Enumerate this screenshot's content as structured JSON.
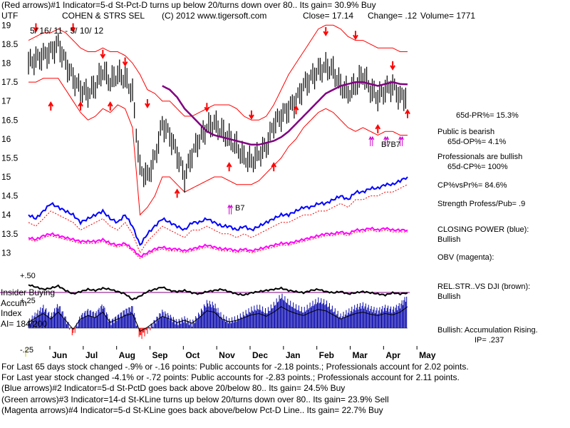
{
  "header": {
    "line1": "(Red arrows)#1 Indicator=5-d St-Pct-D turns up below 20/turns down over 80.. Its gain= 30.9% Buy",
    "symbol": "UTF",
    "name": "COHEN & STRS SEL",
    "copyright": "(C) 2012 www.tigersoft.com",
    "close": "Close=  17.14",
    "change": "Change= .12",
    "volume": "Volume= 1771",
    "date_range": "5/ 16/ 11 - 5/ 10/ 12"
  },
  "side_panel": {
    "pr": "65d-PR%= 15.3%",
    "public": "Public is bearish",
    "op": "65d-OP%= 4.1%",
    "pros": "Professionals are bullish",
    "cp": "65d-CP%= 100%",
    "cpvspr": "CP%vsPr%=  84.6%",
    "strength": "Strength Profess/Pub= .9",
    "closing_power": "CLOSING POWER (blue):",
    "closing_power_val": "Bullish",
    "obv": "OBV (magenta):",
    "relstr": "REL.STR..VS DJI (brown):",
    "relstr_val": "Bullish",
    "accum": "Bullish: Accumulation Rising.",
    "ip": "IP=  .237"
  },
  "lower_panel": {
    "insider": "Insider Buying",
    "accum1": "Accum",
    "accum2": "Index",
    "ai": "AI= 184/200",
    "tick_p50": "+.50",
    "tick_p25": "+.25",
    "tick_m25": "-.25"
  },
  "footer": {
    "line1": "For Last 65 days stock changed -.9% or -.16 points:  Public accounts for -2.18 points.;  Professionals account for  2.02 points.",
    "line2": "For Last year stock changed -4.1% or -.72 points:  Public accounts for -2.83 points.;  Professionals account for  2.11 points.",
    "line3": "(Blue arrows)#2 Indicator=5-d St-PctD goes back above 20/below 80.. Its gain= 24.5% Buy",
    "line4": "(Green arrows)#3 Indicator=14-d St-KLine turns up below 20/turns down over 80.. Its gain= 23.9% Sell",
    "line5": "(Magenta arrows)#4 Indicator=5-d St-KLine goes back above/below Pct-D Line.. Its gain= 22.7% Buy"
  },
  "annotations": {
    "b7": "B7",
    "b7b7": "B7B7"
  },
  "colors": {
    "price": "#000000",
    "band": "#ff0000",
    "ma": "#800080",
    "closing_power": "#0000ff",
    "obv": "#ff00ff",
    "volume": "#0000aa",
    "red_arrow": "#ff0000",
    "magenta_arrow": "#cc00cc"
  },
  "chart_data": {
    "type": "line",
    "title": "COHEN & STRS SEL (UTF)",
    "y_ticks": [
      13,
      13.5,
      14,
      14.5,
      15,
      15.5,
      16,
      16.5,
      17,
      17.5,
      18,
      18.5,
      19
    ],
    "y_tick_labels": [
      "13",
      "13.5",
      "14",
      "14.5",
      "15",
      "15.5",
      "16",
      "16.5",
      "17",
      "17.5",
      "18",
      "18.5",
      "19"
    ],
    "ylim": [
      12.8,
      19.1
    ],
    "months": [
      "Jun",
      "Jul",
      "Aug",
      "Sep",
      "Oct",
      "Nov",
      "Dec",
      "Jan",
      "Feb",
      "Mar",
      "Apr",
      "May"
    ],
    "x_index_range": [
      0,
      51
    ],
    "series": [
      {
        "name": "Price",
        "values": [
          18.0,
          18.1,
          18.2,
          18.3,
          18.5,
          18.0,
          17.6,
          17.3,
          17.2,
          17.4,
          17.8,
          17.5,
          17.7,
          17.6,
          17.2,
          15.2,
          15.0,
          15.5,
          16.4,
          16.1,
          15.6,
          15.0,
          15.6,
          16.0,
          16.3,
          16.4,
          16.2,
          16.0,
          15.8,
          15.5,
          15.4,
          15.6,
          15.8,
          16.4,
          16.6,
          16.8,
          17.0,
          17.4,
          17.6,
          17.8,
          17.9,
          17.8,
          17.4,
          17.2,
          17.4,
          17.7,
          17.3,
          17.1,
          17.3,
          17.4,
          17.1,
          17.14
        ]
      },
      {
        "name": "Upper band",
        "values": [
          18.6,
          18.7,
          18.8,
          18.8,
          18.9,
          18.8,
          18.6,
          18.4,
          18.3,
          18.3,
          18.4,
          18.3,
          18.3,
          18.2,
          18.0,
          17.7,
          17.3,
          17.2,
          17.0,
          17.0,
          16.8,
          16.6,
          16.6,
          16.7,
          16.8,
          16.9,
          16.9,
          16.9,
          16.8,
          16.6,
          16.5,
          16.5,
          16.6,
          16.9,
          17.3,
          17.7,
          18.0,
          18.3,
          18.6,
          18.9,
          19.0,
          19.0,
          18.9,
          18.7,
          18.6,
          18.6,
          18.5,
          18.4,
          18.4,
          18.4,
          18.3,
          18.3
        ]
      },
      {
        "name": "Lower band",
        "values": [
          17.5,
          17.5,
          17.6,
          17.6,
          17.6,
          17.3,
          17.0,
          16.7,
          16.5,
          16.6,
          16.8,
          16.7,
          16.9,
          16.8,
          16.3,
          14.0,
          14.2,
          14.5,
          15.0,
          15.0,
          14.8,
          14.6,
          14.7,
          14.8,
          14.9,
          15.0,
          15.0,
          14.9,
          14.8,
          14.8,
          14.8,
          14.9,
          15.1,
          15.3,
          15.5,
          15.8,
          16.0,
          16.3,
          16.5,
          16.7,
          16.8,
          16.7,
          16.5,
          16.3,
          16.2,
          16.3,
          16.2,
          16.1,
          16.2,
          16.2,
          16.1,
          16.1
        ]
      },
      {
        "name": "Moving average",
        "values": [
          null,
          null,
          null,
          null,
          null,
          null,
          null,
          null,
          null,
          null,
          null,
          null,
          null,
          null,
          null,
          null,
          null,
          null,
          17.4,
          17.3,
          17.1,
          16.8,
          16.6,
          16.4,
          16.2,
          16.1,
          16.05,
          16.0,
          15.95,
          15.9,
          15.85,
          15.85,
          15.9,
          15.95,
          16.05,
          16.2,
          16.4,
          16.6,
          16.8,
          17.0,
          17.2,
          17.3,
          17.4,
          17.45,
          17.5,
          17.5,
          17.45,
          17.4,
          17.45,
          17.5,
          17.45,
          17.44
        ]
      },
      {
        "name": "Closing Power",
        "values": [
          14.0,
          13.9,
          14.1,
          14.3,
          14.2,
          14.1,
          14.0,
          13.8,
          13.9,
          14.0,
          14.1,
          13.9,
          13.8,
          14.0,
          13.7,
          13.2,
          13.5,
          13.7,
          13.9,
          13.8,
          13.7,
          13.6,
          13.8,
          13.8,
          13.9,
          13.8,
          13.7,
          13.7,
          13.6,
          13.7,
          13.6,
          13.7,
          13.8,
          13.9,
          14.0,
          14.0,
          14.1,
          14.2,
          14.2,
          14.3,
          14.3,
          14.4,
          14.5,
          14.4,
          14.6,
          14.6,
          14.7,
          14.7,
          14.8,
          14.8,
          14.9,
          15.0
        ]
      },
      {
        "name": "OBV",
        "values": [
          13.4,
          13.35,
          13.45,
          13.5,
          13.45,
          13.4,
          13.35,
          13.3,
          13.3,
          13.3,
          13.35,
          13.25,
          13.2,
          13.25,
          13.1,
          12.9,
          13.0,
          13.1,
          13.15,
          13.1,
          13.1,
          13.05,
          13.1,
          13.15,
          13.2,
          13.15,
          13.1,
          13.1,
          13.05,
          13.1,
          13.05,
          13.1,
          13.15,
          13.2,
          13.25,
          13.25,
          13.3,
          13.35,
          13.4,
          13.45,
          13.5,
          13.5,
          13.55,
          13.5,
          13.6,
          13.6,
          13.65,
          13.6,
          13.65,
          13.6,
          13.6,
          13.6
        ]
      }
    ],
    "red_arrows": [
      {
        "i": 1,
        "dir": "down",
        "v": 18.9
      },
      {
        "i": 3,
        "dir": "up",
        "v": 16.9
      },
      {
        "i": 6,
        "dir": "down",
        "v": 18.9
      },
      {
        "i": 7,
        "dir": "up",
        "v": 16.9
      },
      {
        "i": 10,
        "dir": "down",
        "v": 18.2
      },
      {
        "i": 11,
        "dir": "up",
        "v": 16.9
      },
      {
        "i": 13,
        "dir": "down",
        "v": 18.0
      },
      {
        "i": 16,
        "dir": "down",
        "v": 16.9
      },
      {
        "i": 20,
        "dir": "up",
        "v": 14.6
      },
      {
        "i": 24,
        "dir": "down",
        "v": 16.8
      },
      {
        "i": 27,
        "dir": "up",
        "v": 15.3
      },
      {
        "i": 30,
        "dir": "down",
        "v": 16.6
      },
      {
        "i": 33,
        "dir": "up",
        "v": 15.3
      },
      {
        "i": 36,
        "dir": "up",
        "v": 16.8
      },
      {
        "i": 40,
        "dir": "down",
        "v": 18.8
      },
      {
        "i": 44,
        "dir": "down",
        "v": 18.7
      },
      {
        "i": 47,
        "dir": "up",
        "v": 16.3
      },
      {
        "i": 49,
        "dir": "down",
        "v": 17.9
      },
      {
        "i": 51,
        "dir": "up",
        "v": 16.7
      }
    ],
    "magenta_arrows": [
      {
        "i": 27,
        "v": 14.2
      },
      {
        "i": 46,
        "v": 16.0
      },
      {
        "i": 48,
        "v": 16.0
      },
      {
        "i": 50,
        "v": 16.0
      }
    ],
    "accumulation": {
      "ylim": [
        -0.25,
        0.5
      ],
      "ticks": [
        "+.50",
        "+.25",
        "-.25"
      ],
      "rel_strength": [
        0.38,
        0.36,
        0.34,
        0.35,
        0.37,
        0.33,
        0.3,
        0.32,
        0.34,
        0.33,
        0.35,
        0.34,
        0.32,
        0.3,
        0.25,
        0.28,
        0.32,
        0.34,
        0.36,
        0.33,
        0.32,
        0.33,
        0.31,
        0.3,
        0.32,
        0.33,
        0.34,
        0.32,
        0.3,
        0.29,
        0.31,
        0.32,
        0.33,
        0.34,
        0.35,
        0.33,
        0.32,
        0.31,
        0.33,
        0.34,
        0.32,
        0.31,
        0.32,
        0.3,
        0.31,
        0.32,
        0.31,
        0.3,
        0.29,
        0.31,
        0.3,
        0.31
      ],
      "accum_index": [
        0.05,
        0.12,
        0.18,
        0.1,
        0.2,
        0.08,
        -0.05,
        0.1,
        0.15,
        0.12,
        0.2,
        0.05,
        0.1,
        0.15,
        0.18,
        -0.08,
        -0.02,
        0.06,
        0.14,
        0.1,
        0.05,
        0.08,
        0.04,
        0.12,
        0.22,
        0.2,
        0.1,
        0.06,
        0.08,
        0.12,
        0.16,
        0.18,
        0.14,
        0.2,
        0.28,
        0.22,
        0.18,
        0.15,
        0.2,
        0.24,
        0.22,
        0.16,
        0.1,
        0.14,
        0.18,
        0.2,
        0.17,
        0.15,
        0.18,
        0.16,
        0.2,
        0.28
      ]
    }
  }
}
